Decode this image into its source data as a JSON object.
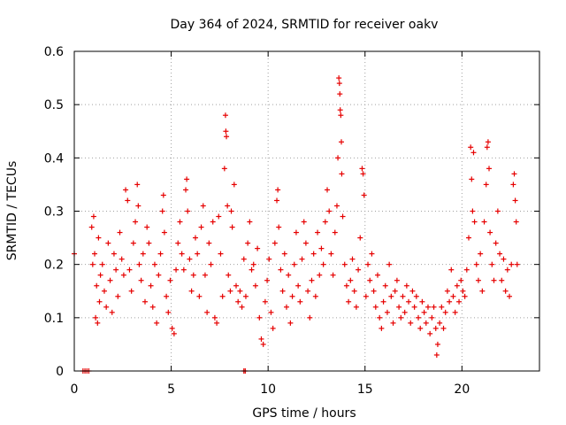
{
  "chart_data": {
    "type": "scatter",
    "title": "Day 364 of 2024, SRMTID for receiver oakv",
    "xlabel": "GPS time / hours",
    "ylabel": "SRMTID / TECUs",
    "xlim": [
      0,
      24
    ],
    "ylim": [
      0,
      0.6
    ],
    "xticks": [
      0,
      5,
      10,
      15,
      20
    ],
    "xtick_labels": [
      "0",
      "5",
      "10",
      "15",
      "20"
    ],
    "yticks": [
      0,
      0.1,
      0.2,
      0.3,
      0.4,
      0.5,
      0.6
    ],
    "ytick_labels": [
      "0",
      "0.1",
      "0.2",
      "0.3",
      "0.4",
      "0.5",
      "0.6"
    ],
    "grid": true,
    "marker": "+",
    "color": "#e60000",
    "series": [
      {
        "name": "SRMTID",
        "points": [
          [
            0.0,
            0.22
          ],
          [
            0.45,
            0.0
          ],
          [
            0.55,
            0.0
          ],
          [
            0.65,
            0.0
          ],
          [
            0.75,
            0.0
          ],
          [
            8.75,
            0.0
          ],
          [
            8.82,
            0.0
          ],
          [
            0.9,
            0.27
          ],
          [
            0.95,
            0.2
          ],
          [
            1.0,
            0.29
          ],
          [
            1.05,
            0.22
          ],
          [
            1.1,
            0.1
          ],
          [
            1.15,
            0.16
          ],
          [
            1.2,
            0.09
          ],
          [
            1.25,
            0.25
          ],
          [
            1.3,
            0.13
          ],
          [
            1.35,
            0.18
          ],
          [
            1.45,
            0.2
          ],
          [
            1.55,
            0.15
          ],
          [
            1.65,
            0.12
          ],
          [
            1.75,
            0.24
          ],
          [
            1.85,
            0.17
          ],
          [
            1.95,
            0.11
          ],
          [
            2.05,
            0.22
          ],
          [
            2.15,
            0.19
          ],
          [
            2.25,
            0.14
          ],
          [
            2.35,
            0.26
          ],
          [
            2.45,
            0.21
          ],
          [
            2.55,
            0.18
          ],
          [
            2.65,
            0.34
          ],
          [
            2.75,
            0.32
          ],
          [
            2.85,
            0.19
          ],
          [
            2.95,
            0.15
          ],
          [
            3.05,
            0.24
          ],
          [
            3.15,
            0.28
          ],
          [
            3.25,
            0.35
          ],
          [
            3.3,
            0.31
          ],
          [
            3.35,
            0.2
          ],
          [
            3.45,
            0.17
          ],
          [
            3.55,
            0.22
          ],
          [
            3.65,
            0.13
          ],
          [
            3.75,
            0.27
          ],
          [
            3.85,
            0.24
          ],
          [
            3.95,
            0.16
          ],
          [
            4.05,
            0.12
          ],
          [
            4.15,
            0.2
          ],
          [
            4.25,
            0.09
          ],
          [
            4.35,
            0.18
          ],
          [
            4.45,
            0.22
          ],
          [
            4.55,
            0.3
          ],
          [
            4.6,
            0.33
          ],
          [
            4.65,
            0.26
          ],
          [
            4.75,
            0.14
          ],
          [
            4.85,
            0.11
          ],
          [
            4.95,
            0.17
          ],
          [
            5.05,
            0.08
          ],
          [
            5.15,
            0.07
          ],
          [
            5.25,
            0.19
          ],
          [
            5.35,
            0.24
          ],
          [
            5.45,
            0.28
          ],
          [
            5.55,
            0.22
          ],
          [
            5.65,
            0.19
          ],
          [
            5.75,
            0.34
          ],
          [
            5.8,
            0.36
          ],
          [
            5.85,
            0.3
          ],
          [
            5.95,
            0.21
          ],
          [
            6.05,
            0.15
          ],
          [
            6.15,
            0.18
          ],
          [
            6.25,
            0.25
          ],
          [
            6.35,
            0.22
          ],
          [
            6.45,
            0.14
          ],
          [
            6.55,
            0.27
          ],
          [
            6.65,
            0.31
          ],
          [
            6.75,
            0.18
          ],
          [
            6.85,
            0.11
          ],
          [
            6.95,
            0.24
          ],
          [
            7.05,
            0.2
          ],
          [
            7.15,
            0.28
          ],
          [
            7.25,
            0.1
          ],
          [
            7.35,
            0.09
          ],
          [
            7.45,
            0.29
          ],
          [
            7.55,
            0.22
          ],
          [
            7.65,
            0.14
          ],
          [
            7.75,
            0.38
          ],
          [
            7.8,
            0.48
          ],
          [
            7.82,
            0.45
          ],
          [
            7.85,
            0.44
          ],
          [
            7.9,
            0.31
          ],
          [
            7.95,
            0.18
          ],
          [
            8.05,
            0.15
          ],
          [
            8.1,
            0.3
          ],
          [
            8.15,
            0.27
          ],
          [
            8.25,
            0.35
          ],
          [
            8.35,
            0.16
          ],
          [
            8.45,
            0.13
          ],
          [
            8.55,
            0.15
          ],
          [
            8.65,
            0.12
          ],
          [
            8.75,
            0.21
          ],
          [
            8.85,
            0.14
          ],
          [
            8.95,
            0.24
          ],
          [
            9.05,
            0.28
          ],
          [
            9.15,
            0.19
          ],
          [
            9.25,
            0.2
          ],
          [
            9.35,
            0.16
          ],
          [
            9.45,
            0.23
          ],
          [
            9.55,
            0.1
          ],
          [
            9.65,
            0.06
          ],
          [
            9.75,
            0.05
          ],
          [
            9.85,
            0.13
          ],
          [
            9.95,
            0.17
          ],
          [
            10.05,
            0.21
          ],
          [
            10.15,
            0.11
          ],
          [
            10.25,
            0.08
          ],
          [
            10.35,
            0.24
          ],
          [
            10.45,
            0.32
          ],
          [
            10.5,
            0.34
          ],
          [
            10.55,
            0.27
          ],
          [
            10.65,
            0.19
          ],
          [
            10.75,
            0.15
          ],
          [
            10.85,
            0.22
          ],
          [
            10.95,
            0.12
          ],
          [
            11.05,
            0.18
          ],
          [
            11.15,
            0.09
          ],
          [
            11.25,
            0.14
          ],
          [
            11.35,
            0.2
          ],
          [
            11.45,
            0.26
          ],
          [
            11.55,
            0.16
          ],
          [
            11.65,
            0.13
          ],
          [
            11.75,
            0.21
          ],
          [
            11.85,
            0.28
          ],
          [
            11.95,
            0.24
          ],
          [
            12.05,
            0.15
          ],
          [
            12.15,
            0.1
          ],
          [
            12.25,
            0.17
          ],
          [
            12.35,
            0.22
          ],
          [
            12.45,
            0.14
          ],
          [
            12.55,
            0.26
          ],
          [
            12.65,
            0.18
          ],
          [
            12.75,
            0.23
          ],
          [
            12.85,
            0.2
          ],
          [
            12.95,
            0.28
          ],
          [
            13.05,
            0.34
          ],
          [
            13.15,
            0.3
          ],
          [
            13.25,
            0.22
          ],
          [
            13.35,
            0.18
          ],
          [
            13.45,
            0.26
          ],
          [
            13.55,
            0.31
          ],
          [
            13.6,
            0.4
          ],
          [
            13.65,
            0.55
          ],
          [
            13.68,
            0.54
          ],
          [
            13.7,
            0.52
          ],
          [
            13.72,
            0.49
          ],
          [
            13.75,
            0.48
          ],
          [
            13.78,
            0.43
          ],
          [
            13.8,
            0.37
          ],
          [
            13.85,
            0.29
          ],
          [
            13.95,
            0.2
          ],
          [
            14.05,
            0.16
          ],
          [
            14.15,
            0.13
          ],
          [
            14.25,
            0.17
          ],
          [
            14.35,
            0.21
          ],
          [
            14.45,
            0.15
          ],
          [
            14.55,
            0.12
          ],
          [
            14.65,
            0.19
          ],
          [
            14.75,
            0.25
          ],
          [
            14.85,
            0.38
          ],
          [
            14.9,
            0.37
          ],
          [
            14.95,
            0.33
          ],
          [
            15.05,
            0.14
          ],
          [
            15.15,
            0.2
          ],
          [
            15.25,
            0.17
          ],
          [
            15.35,
            0.22
          ],
          [
            15.45,
            0.15
          ],
          [
            15.55,
            0.12
          ],
          [
            15.65,
            0.18
          ],
          [
            15.75,
            0.1
          ],
          [
            15.85,
            0.08
          ],
          [
            15.95,
            0.13
          ],
          [
            16.05,
            0.16
          ],
          [
            16.15,
            0.11
          ],
          [
            16.25,
            0.2
          ],
          [
            16.35,
            0.14
          ],
          [
            16.45,
            0.09
          ],
          [
            16.55,
            0.15
          ],
          [
            16.65,
            0.17
          ],
          [
            16.75,
            0.12
          ],
          [
            16.85,
            0.1
          ],
          [
            16.95,
            0.14
          ],
          [
            17.05,
            0.11
          ],
          [
            17.15,
            0.16
          ],
          [
            17.25,
            0.13
          ],
          [
            17.35,
            0.09
          ],
          [
            17.45,
            0.15
          ],
          [
            17.55,
            0.12
          ],
          [
            17.65,
            0.14
          ],
          [
            17.75,
            0.1
          ],
          [
            17.85,
            0.08
          ],
          [
            17.95,
            0.13
          ],
          [
            18.05,
            0.11
          ],
          [
            18.15,
            0.09
          ],
          [
            18.25,
            0.12
          ],
          [
            18.35,
            0.07
          ],
          [
            18.45,
            0.1
          ],
          [
            18.55,
            0.12
          ],
          [
            18.65,
            0.08
          ],
          [
            18.7,
            0.03
          ],
          [
            18.75,
            0.05
          ],
          [
            18.85,
            0.09
          ],
          [
            18.95,
            0.12
          ],
          [
            19.05,
            0.08
          ],
          [
            19.15,
            0.11
          ],
          [
            19.25,
            0.15
          ],
          [
            19.35,
            0.13
          ],
          [
            19.45,
            0.19
          ],
          [
            19.55,
            0.14
          ],
          [
            19.65,
            0.11
          ],
          [
            19.75,
            0.16
          ],
          [
            19.85,
            0.13
          ],
          [
            19.95,
            0.17
          ],
          [
            20.05,
            0.15
          ],
          [
            20.15,
            0.14
          ],
          [
            20.25,
            0.19
          ],
          [
            20.35,
            0.25
          ],
          [
            20.45,
            0.42
          ],
          [
            20.5,
            0.36
          ],
          [
            20.55,
            0.3
          ],
          [
            20.6,
            0.41
          ],
          [
            20.65,
            0.28
          ],
          [
            20.75,
            0.2
          ],
          [
            20.85,
            0.17
          ],
          [
            20.95,
            0.22
          ],
          [
            21.05,
            0.15
          ],
          [
            21.15,
            0.28
          ],
          [
            21.25,
            0.35
          ],
          [
            21.3,
            0.42
          ],
          [
            21.35,
            0.43
          ],
          [
            21.4,
            0.38
          ],
          [
            21.45,
            0.26
          ],
          [
            21.55,
            0.2
          ],
          [
            21.65,
            0.17
          ],
          [
            21.75,
            0.24
          ],
          [
            21.85,
            0.3
          ],
          [
            21.95,
            0.22
          ],
          [
            22.05,
            0.17
          ],
          [
            22.15,
            0.21
          ],
          [
            22.25,
            0.15
          ],
          [
            22.35,
            0.19
          ],
          [
            22.45,
            0.14
          ],
          [
            22.55,
            0.2
          ],
          [
            22.65,
            0.35
          ],
          [
            22.7,
            0.37
          ],
          [
            22.75,
            0.32
          ],
          [
            22.8,
            0.28
          ],
          [
            22.85,
            0.2
          ]
        ]
      }
    ]
  }
}
